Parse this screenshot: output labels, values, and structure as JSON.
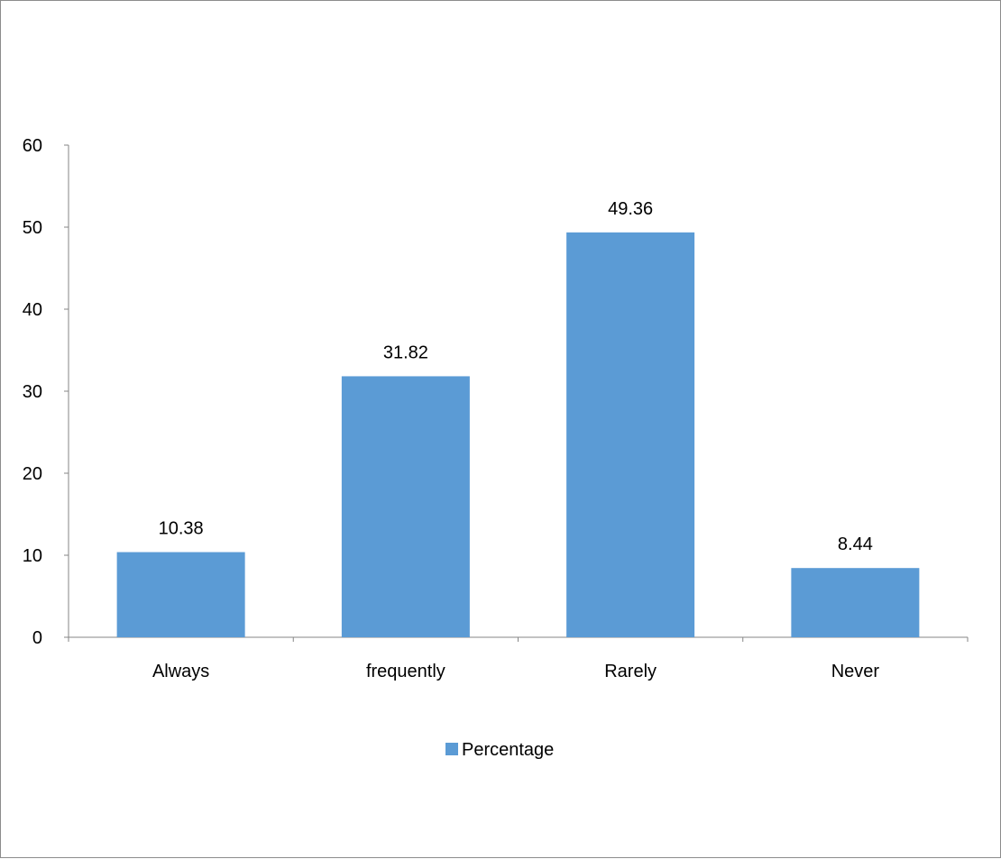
{
  "chart_data": {
    "type": "bar",
    "title": "",
    "xlabel": "",
    "ylabel": "",
    "categories": [
      "Always",
      "frequently",
      "Rarely",
      "Never"
    ],
    "series": [
      {
        "name": "Percentage",
        "values": [
          10.38,
          31.82,
          49.36,
          8.44
        ],
        "color": "#5b9bd5"
      }
    ],
    "data_labels": [
      "10.38",
      "31.82",
      "49.36",
      "8.44"
    ],
    "ylim": [
      0,
      60
    ],
    "yticks": [
      0,
      10,
      20,
      30,
      40,
      50,
      60
    ],
    "ytick_labels": [
      "0",
      "10",
      "20",
      "30",
      "40",
      "50",
      "60"
    ],
    "grid": false,
    "legend": {
      "position": "bottom",
      "entries": [
        "Percentage"
      ]
    }
  }
}
